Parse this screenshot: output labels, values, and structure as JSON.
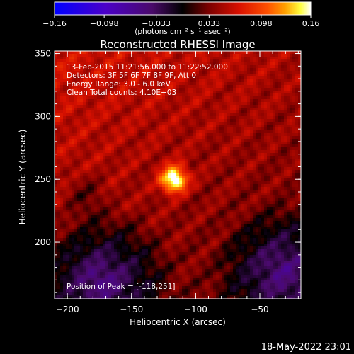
{
  "chart_data": {
    "type": "heatmap",
    "title": "Reconstructed RHESSI Image",
    "xlabel": "Heliocentric X (arcsec)",
    "ylabel": "Heliocentric Y (arcsec)",
    "xlim": [
      -210,
      -18
    ],
    "ylim": [
      155,
      352
    ],
    "x_ticks": [
      {
        "value": -200,
        "label": "−200"
      },
      {
        "value": -150,
        "label": "−150"
      },
      {
        "value": -100,
        "label": "−100"
      },
      {
        "value": -50,
        "label": "−50"
      }
    ],
    "y_ticks": [
      {
        "value": 200,
        "label": "200"
      },
      {
        "value": 250,
        "label": "250"
      },
      {
        "value": 300,
        "label": "300"
      },
      {
        "value": 350,
        "label": "350"
      }
    ],
    "colorbar": {
      "range": [
        -0.16,
        0.16
      ],
      "ticks": [
        {
          "value": -0.16,
          "label": "−0.16"
        },
        {
          "value": -0.098,
          "label": "−0.098"
        },
        {
          "value": -0.033,
          "label": "−0.033"
        },
        {
          "value": 0.033,
          "label": "0.033"
        },
        {
          "value": 0.098,
          "label": "0.098"
        },
        {
          "value": 0.16,
          "label": "0.16"
        }
      ],
      "unit_label": "(photons cm⁻² s⁻¹ asec⁻²)",
      "colors": [
        "#0000ff",
        "#4b00c8",
        "#4a0a6a",
        "#000000",
        "#7a0000",
        "#d81000",
        "#ff5000",
        "#ffa000",
        "#ffff40",
        "#ffffff"
      ]
    },
    "peak": {
      "x": -118,
      "y": 251,
      "value": 0.16
    },
    "annotations": [
      "13-Feb-2015 11:21:56.000 to 11:22:52.000",
      "Detectors: 3F 5F 6F 7F 8F 9F, Att 0",
      "Energy Range: 3.0 - 6.0 keV",
      "Clean     Total counts: 4.10E+03"
    ],
    "peak_label": "Position of Peak = [-118,251]"
  },
  "footer": {
    "timestamp": "18-May-2022 23:01"
  }
}
